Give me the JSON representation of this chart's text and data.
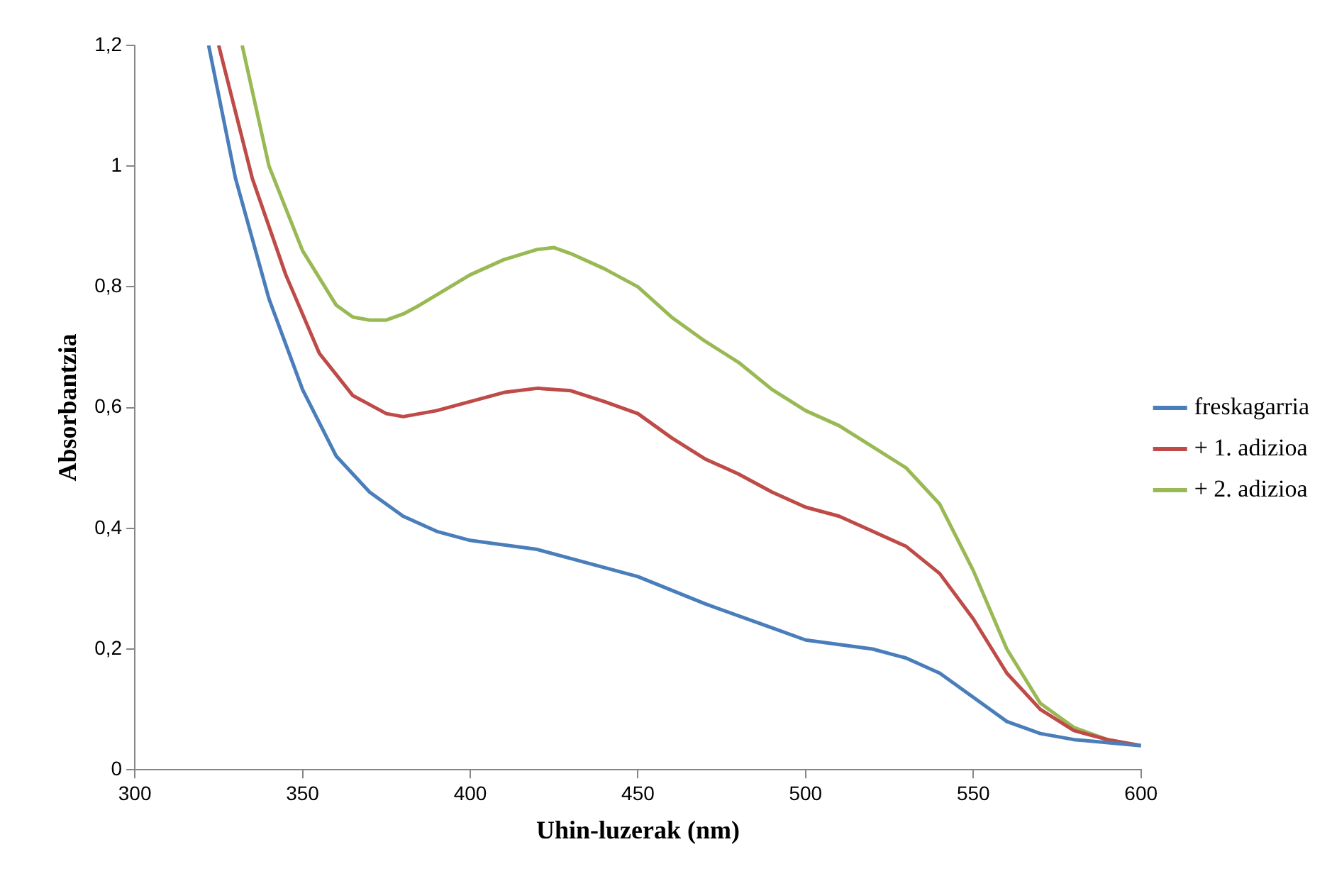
{
  "chart_data": {
    "type": "line",
    "xlabel": "Uhin-luzerak (nm)",
    "ylabel": "Absorbantzia",
    "xlim": [
      300,
      600
    ],
    "xticks": [
      300,
      350,
      400,
      450,
      500,
      550,
      600
    ],
    "ylim": [
      0,
      1.2
    ],
    "yticks": [
      0,
      {
        "value": 0.2,
        "label": "0,2"
      },
      {
        "value": 0.4,
        "label": "0,4"
      },
      {
        "value": 0.6,
        "label": "0,6"
      },
      {
        "value": 0.8,
        "label": "0,8"
      },
      1,
      {
        "value": 1.2,
        "label": "1,2"
      }
    ],
    "grid": false,
    "legend": "right",
    "marker": "none",
    "line_style": "solid",
    "series": [
      {
        "name": "freskagarria",
        "color": "#4a7ebb",
        "x": [
          322,
          330,
          340,
          350,
          360,
          370,
          380,
          390,
          400,
          420,
          430,
          450,
          470,
          490,
          500,
          520,
          530,
          540,
          550,
          560,
          570,
          580,
          600
        ],
        "values": [
          1.2,
          0.98,
          0.78,
          0.63,
          0.52,
          0.46,
          0.42,
          0.395,
          0.38,
          0.365,
          0.35,
          0.32,
          0.275,
          0.235,
          0.215,
          0.2,
          0.185,
          0.16,
          0.12,
          0.08,
          0.06,
          0.05,
          0.04
        ]
      },
      {
        "name": "+ 1. adizioa",
        "color": "#be4b48",
        "x": [
          325,
          335,
          345,
          355,
          365,
          375,
          380,
          390,
          400,
          410,
          420,
          430,
          440,
          450,
          460,
          470,
          480,
          490,
          500,
          510,
          520,
          530,
          540,
          550,
          560,
          570,
          580,
          590,
          600
        ],
        "values": [
          1.2,
          0.98,
          0.82,
          0.69,
          0.62,
          0.59,
          0.585,
          0.595,
          0.61,
          0.625,
          0.632,
          0.628,
          0.61,
          0.59,
          0.55,
          0.515,
          0.49,
          0.46,
          0.435,
          0.42,
          0.395,
          0.37,
          0.325,
          0.25,
          0.16,
          0.1,
          0.065,
          0.05,
          0.04
        ]
      },
      {
        "name": "+ 2. adizioa",
        "color": "#98b954",
        "x": [
          332,
          340,
          350,
          360,
          365,
          370,
          375,
          380,
          385,
          400,
          410,
          420,
          425,
          430,
          440,
          450,
          460,
          470,
          480,
          490,
          500,
          510,
          520,
          530,
          540,
          550,
          560,
          570,
          580,
          590,
          600
        ],
        "values": [
          1.2,
          1.0,
          0.86,
          0.77,
          0.75,
          0.745,
          0.745,
          0.755,
          0.77,
          0.82,
          0.845,
          0.862,
          0.865,
          0.855,
          0.83,
          0.8,
          0.75,
          0.71,
          0.675,
          0.63,
          0.595,
          0.57,
          0.535,
          0.5,
          0.44,
          0.33,
          0.2,
          0.11,
          0.07,
          0.05,
          0.04
        ]
      }
    ]
  }
}
